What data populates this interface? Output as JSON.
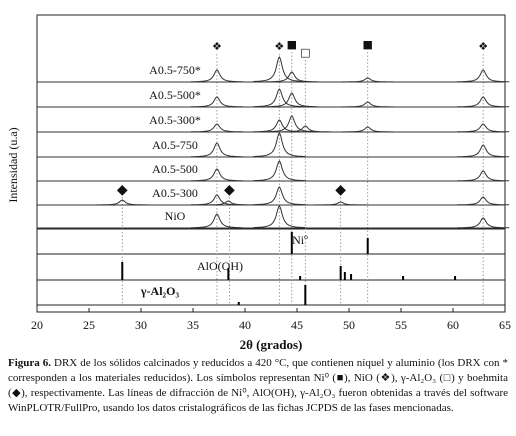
{
  "chart_data": {
    "type": "xrd",
    "xlabel": "2θ (grados)",
    "ylabel": "Intensidad (u.a)",
    "xlim": [
      20,
      65
    ],
    "xticks": [
      20,
      25,
      30,
      35,
      40,
      45,
      50,
      55,
      60,
      65
    ],
    "series": [
      {
        "name": "A0.5-750*",
        "x": [
          37.3,
          43.3,
          44.5,
          51.8,
          62.9
        ],
        "values": [
          12,
          25,
          10,
          4,
          12
        ]
      },
      {
        "name": "A0.5-500*",
        "x": [
          37.3,
          43.3,
          44.5,
          51.8,
          62.9
        ],
        "values": [
          10,
          18,
          14,
          5,
          10
        ]
      },
      {
        "name": "A0.5-300*",
        "x": [
          37.3,
          43.3,
          44.5,
          45.8,
          51.8,
          62.9
        ],
        "values": [
          8,
          12,
          16,
          6,
          5,
          8
        ]
      },
      {
        "name": "A0.5-750",
        "x": [
          37.3,
          43.3,
          62.9
        ],
        "values": [
          14,
          24,
          12
        ]
      },
      {
        "name": "A0.5-500",
        "x": [
          37.3,
          43.3,
          62.9
        ],
        "values": [
          12,
          20,
          10
        ]
      },
      {
        "name": "A0.5-300",
        "x": [
          28.2,
          37.3,
          38.4,
          43.3,
          49.2,
          62.9
        ],
        "values": [
          5,
          10,
          4,
          18,
          3,
          8
        ]
      },
      {
        "name": "NiO",
        "x": [
          37.3,
          43.3,
          62.9
        ],
        "values": [
          14,
          22,
          10
        ]
      }
    ],
    "references": [
      {
        "name": "Niº",
        "x": [
          44.5,
          51.8
        ],
        "values": [
          22,
          16
        ]
      },
      {
        "name": "AlO(OH)",
        "x": [
          28.2,
          38.4,
          45.3,
          49.2,
          49.6,
          50.2,
          55.2,
          60.2
        ],
        "values": [
          18,
          12,
          4,
          14,
          8,
          6,
          4,
          4
        ]
      },
      {
        "name": "γ-Al₂O₃",
        "x": [
          39.4,
          45.8
        ],
        "values": [
          3,
          20
        ]
      }
    ],
    "markers": [
      {
        "symbol": "❖",
        "x": [
          37.3,
          43.3,
          62.9
        ]
      },
      {
        "symbol": "■",
        "x": [
          44.5,
          51.8
        ]
      },
      {
        "symbol": "□",
        "x": [
          45.8
        ]
      },
      {
        "symbol": "◆",
        "x": [
          28.2,
          38.5,
          49.2
        ]
      }
    ],
    "caption": {
      "label": "Figura 6.",
      "text": "DRX de los sólidos calcinados y reducidos a 420 °C, que contienen níquel y aluminio (los DRX con * corresponden a los materiales reducidos). Los símbolos representan Ni⁰ (■), NiO (❖), γ-Al₂O₃ (□) y boehmita (◆), respectivamente. Las líneas de difracción de Ni⁰, AlO(OH), γ-Al₂O₃ fueron obtenidas a través del software WinPLOTR/FullPro, usando los datos cristalográficos de las fichas JCPDS de las fases mencionadas."
    }
  }
}
